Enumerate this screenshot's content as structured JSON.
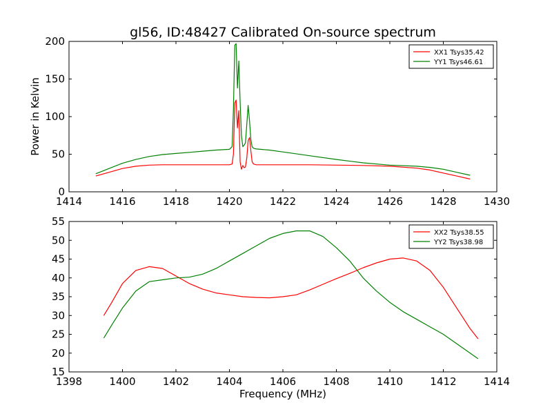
{
  "chart_data": [
    {
      "type": "line",
      "title": "gl56, ID:48427 Calibrated On-source spectrum",
      "xlabel": "",
      "ylabel": "Power in Kelvin",
      "xlim": [
        1414,
        1430
      ],
      "ylim": [
        0,
        200
      ],
      "xticks": [
        "1414",
        "1416",
        "1418",
        "1420",
        "1422",
        "1424",
        "1426",
        "1428",
        "1430"
      ],
      "yticks": [
        "0",
        "50",
        "100",
        "150",
        "200"
      ],
      "legend_position": "top-right",
      "grid": false,
      "series": [
        {
          "name": "XX1 Tsys35.42",
          "color": "#ff0000",
          "x": [
            1415.0,
            1415.5,
            1416.0,
            1416.5,
            1417.0,
            1417.5,
            1418.0,
            1418.5,
            1419.0,
            1419.5,
            1420.0,
            1420.1,
            1420.15,
            1420.2,
            1420.25,
            1420.3,
            1420.35,
            1420.4,
            1420.45,
            1420.5,
            1420.55,
            1420.6,
            1420.65,
            1420.7,
            1420.75,
            1420.8,
            1420.85,
            1420.9,
            1421.0,
            1421.5,
            1422.0,
            1423.0,
            1424.0,
            1425.0,
            1426.0,
            1427.0,
            1427.5,
            1428.0,
            1428.5,
            1429.0
          ],
          "y": [
            21,
            26,
            31,
            34,
            35.5,
            36,
            36,
            36,
            36,
            36,
            36,
            37,
            50,
            118,
            122,
            85,
            108,
            40,
            30,
            35,
            32,
            33,
            45,
            68,
            72,
            55,
            40,
            37,
            36,
            36,
            36,
            36,
            35.5,
            35,
            34,
            31.5,
            29,
            25,
            21,
            17
          ]
        },
        {
          "name": "YY1 Tsys46.61",
          "color": "#008000",
          "x": [
            1415.0,
            1415.5,
            1416.0,
            1416.5,
            1417.0,
            1417.5,
            1418.0,
            1418.5,
            1419.0,
            1419.5,
            1420.0,
            1420.1,
            1420.15,
            1420.2,
            1420.25,
            1420.3,
            1420.35,
            1420.4,
            1420.45,
            1420.5,
            1420.55,
            1420.6,
            1420.65,
            1420.7,
            1420.75,
            1420.8,
            1420.85,
            1420.9,
            1421.0,
            1421.5,
            1422.0,
            1423.0,
            1424.0,
            1425.0,
            1426.0,
            1427.0,
            1427.5,
            1428.0,
            1428.5,
            1429.0
          ],
          "y": [
            24,
            31,
            38,
            43,
            47,
            49.5,
            51,
            52.5,
            54,
            55.5,
            56.5,
            60,
            110,
            195,
            197,
            138,
            174,
            120,
            75,
            60,
            62,
            65,
            90,
            115,
            95,
            70,
            60,
            58,
            57,
            55.5,
            53,
            48,
            43,
            38.5,
            35.5,
            34,
            32.5,
            30,
            26,
            22
          ]
        }
      ]
    },
    {
      "type": "line",
      "title": "",
      "xlabel": "Frequency (MHz)",
      "ylabel": "",
      "xlim": [
        1398,
        1414
      ],
      "ylim": [
        15,
        55
      ],
      "xticks": [
        "1398",
        "1400",
        "1402",
        "1404",
        "1406",
        "1408",
        "1410",
        "1412",
        "1414"
      ],
      "yticks": [
        "15",
        "20",
        "25",
        "30",
        "35",
        "40",
        "45",
        "50",
        "55"
      ],
      "legend_position": "top-right",
      "grid": false,
      "series": [
        {
          "name": "XX2 Tsys38.55",
          "color": "#ff0000",
          "x": [
            1399.3,
            1399.6,
            1400.0,
            1400.5,
            1401.0,
            1401.5,
            1402.0,
            1402.5,
            1403.0,
            1403.5,
            1404.0,
            1404.5,
            1405.0,
            1405.5,
            1406.0,
            1406.5,
            1407.0,
            1407.5,
            1408.0,
            1408.5,
            1409.0,
            1409.5,
            1410.0,
            1410.5,
            1411.0,
            1411.5,
            1412.0,
            1412.5,
            1413.0,
            1413.3
          ],
          "y": [
            30,
            33.5,
            38.5,
            42,
            43,
            42.5,
            40.5,
            38.5,
            37,
            36,
            35.5,
            35,
            34.8,
            34.7,
            35,
            35.5,
            36.8,
            38.3,
            39.8,
            41.2,
            42.7,
            44,
            45,
            45.3,
            44.5,
            42,
            37.5,
            32,
            26.5,
            23.8
          ]
        },
        {
          "name": "YY2 Tsys38.98",
          "color": "#008000",
          "x": [
            1399.3,
            1399.6,
            1400.0,
            1400.5,
            1401.0,
            1401.5,
            1402.0,
            1402.5,
            1403.0,
            1403.5,
            1404.0,
            1404.5,
            1405.0,
            1405.5,
            1406.0,
            1406.5,
            1407.0,
            1407.5,
            1408.0,
            1408.5,
            1409.0,
            1409.5,
            1410.0,
            1410.5,
            1411.0,
            1411.5,
            1412.0,
            1412.5,
            1413.0,
            1413.3
          ],
          "y": [
            24,
            27.5,
            32,
            36.5,
            39,
            39.5,
            40,
            40.2,
            41,
            42.5,
            44.5,
            46.5,
            48.5,
            50.5,
            51.8,
            52.5,
            52.5,
            51,
            48,
            44.5,
            40,
            36.5,
            33.5,
            31,
            29,
            27,
            25,
            22.5,
            20,
            18.5
          ]
        }
      ]
    }
  ]
}
